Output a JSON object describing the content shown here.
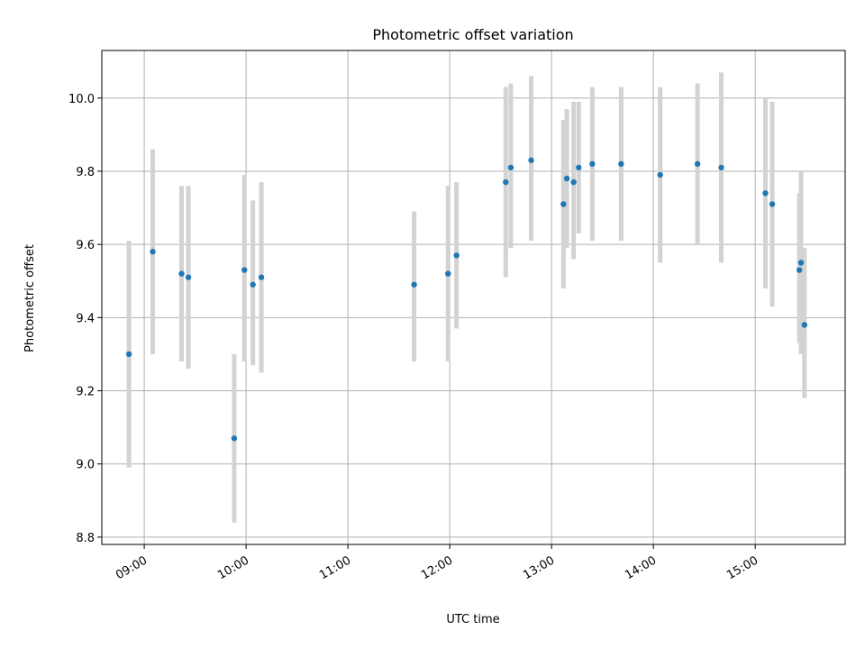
{
  "chart_data": {
    "type": "scatter",
    "title": "Photometric offset variation",
    "xlabel": "UTC time",
    "ylabel": "Photometric offset",
    "xlim": [
      "08:35",
      "15:53"
    ],
    "ylim": [
      8.78,
      10.13
    ],
    "xticks": [
      "09:00",
      "10:00",
      "11:00",
      "12:00",
      "13:00",
      "14:00",
      "15:00"
    ],
    "yticks": [
      8.8,
      9.0,
      9.2,
      9.4,
      9.6,
      9.8,
      10.0
    ],
    "ytick_labels": [
      "8.8",
      "9.0",
      "9.2",
      "9.4",
      "9.6",
      "9.8",
      "10.0"
    ],
    "grid": true,
    "colors": {
      "point": "#1f77b4",
      "errorbar": "#d3d3d3",
      "grid": "#b0b0b0"
    },
    "series": [
      {
        "points": [
          {
            "x": "08:51",
            "y": 9.3,
            "ylow": 8.99,
            "yhigh": 9.61
          },
          {
            "x": "09:05",
            "y": 9.58,
            "ylow": 9.3,
            "yhigh": 9.86
          },
          {
            "x": "09:22",
            "y": 9.52,
            "ylow": 9.28,
            "yhigh": 9.76
          },
          {
            "x": "09:26",
            "y": 9.51,
            "ylow": 9.26,
            "yhigh": 9.76
          },
          {
            "x": "09:53",
            "y": 9.07,
            "ylow": 8.84,
            "yhigh": 9.3
          },
          {
            "x": "09:59",
            "y": 9.53,
            "ylow": 9.28,
            "yhigh": 9.79
          },
          {
            "x": "10:04",
            "y": 9.49,
            "ylow": 9.27,
            "yhigh": 9.72
          },
          {
            "x": "10:09",
            "y": 9.51,
            "ylow": 9.25,
            "yhigh": 9.77
          },
          {
            "x": "11:39",
            "y": 9.49,
            "ylow": 9.28,
            "yhigh": 9.69
          },
          {
            "x": "11:59",
            "y": 9.52,
            "ylow": 9.28,
            "yhigh": 9.76
          },
          {
            "x": "12:04",
            "y": 9.57,
            "ylow": 9.37,
            "yhigh": 9.77
          },
          {
            "x": "12:33",
            "y": 9.77,
            "ylow": 9.51,
            "yhigh": 10.03
          },
          {
            "x": "12:36",
            "y": 9.81,
            "ylow": 9.59,
            "yhigh": 10.04
          },
          {
            "x": "12:48",
            "y": 9.83,
            "ylow": 9.61,
            "yhigh": 10.06
          },
          {
            "x": "13:07",
            "y": 9.71,
            "ylow": 9.48,
            "yhigh": 9.94
          },
          {
            "x": "13:09",
            "y": 9.78,
            "ylow": 9.59,
            "yhigh": 9.97
          },
          {
            "x": "13:13",
            "y": 9.77,
            "ylow": 9.56,
            "yhigh": 9.99
          },
          {
            "x": "13:16",
            "y": 9.81,
            "ylow": 9.63,
            "yhigh": 9.99
          },
          {
            "x": "13:24",
            "y": 9.82,
            "ylow": 9.61,
            "yhigh": 10.03
          },
          {
            "x": "13:41",
            "y": 9.82,
            "ylow": 9.61,
            "yhigh": 10.03
          },
          {
            "x": "14:04",
            "y": 9.79,
            "ylow": 9.55,
            "yhigh": 10.03
          },
          {
            "x": "14:26",
            "y": 9.82,
            "ylow": 9.6,
            "yhigh": 10.04
          },
          {
            "x": "14:40",
            "y": 9.81,
            "ylow": 9.55,
            "yhigh": 10.07
          },
          {
            "x": "15:06",
            "y": 9.74,
            "ylow": 9.48,
            "yhigh": 10.0
          },
          {
            "x": "15:10",
            "y": 9.71,
            "ylow": 9.43,
            "yhigh": 9.99
          },
          {
            "x": "15:26",
            "y": 9.53,
            "ylow": 9.33,
            "yhigh": 9.74
          },
          {
            "x": "15:27",
            "y": 9.55,
            "ylow": 9.3,
            "yhigh": 9.8
          },
          {
            "x": "15:29",
            "y": 9.38,
            "ylow": 9.18,
            "yhigh": 9.59
          }
        ]
      }
    ]
  }
}
